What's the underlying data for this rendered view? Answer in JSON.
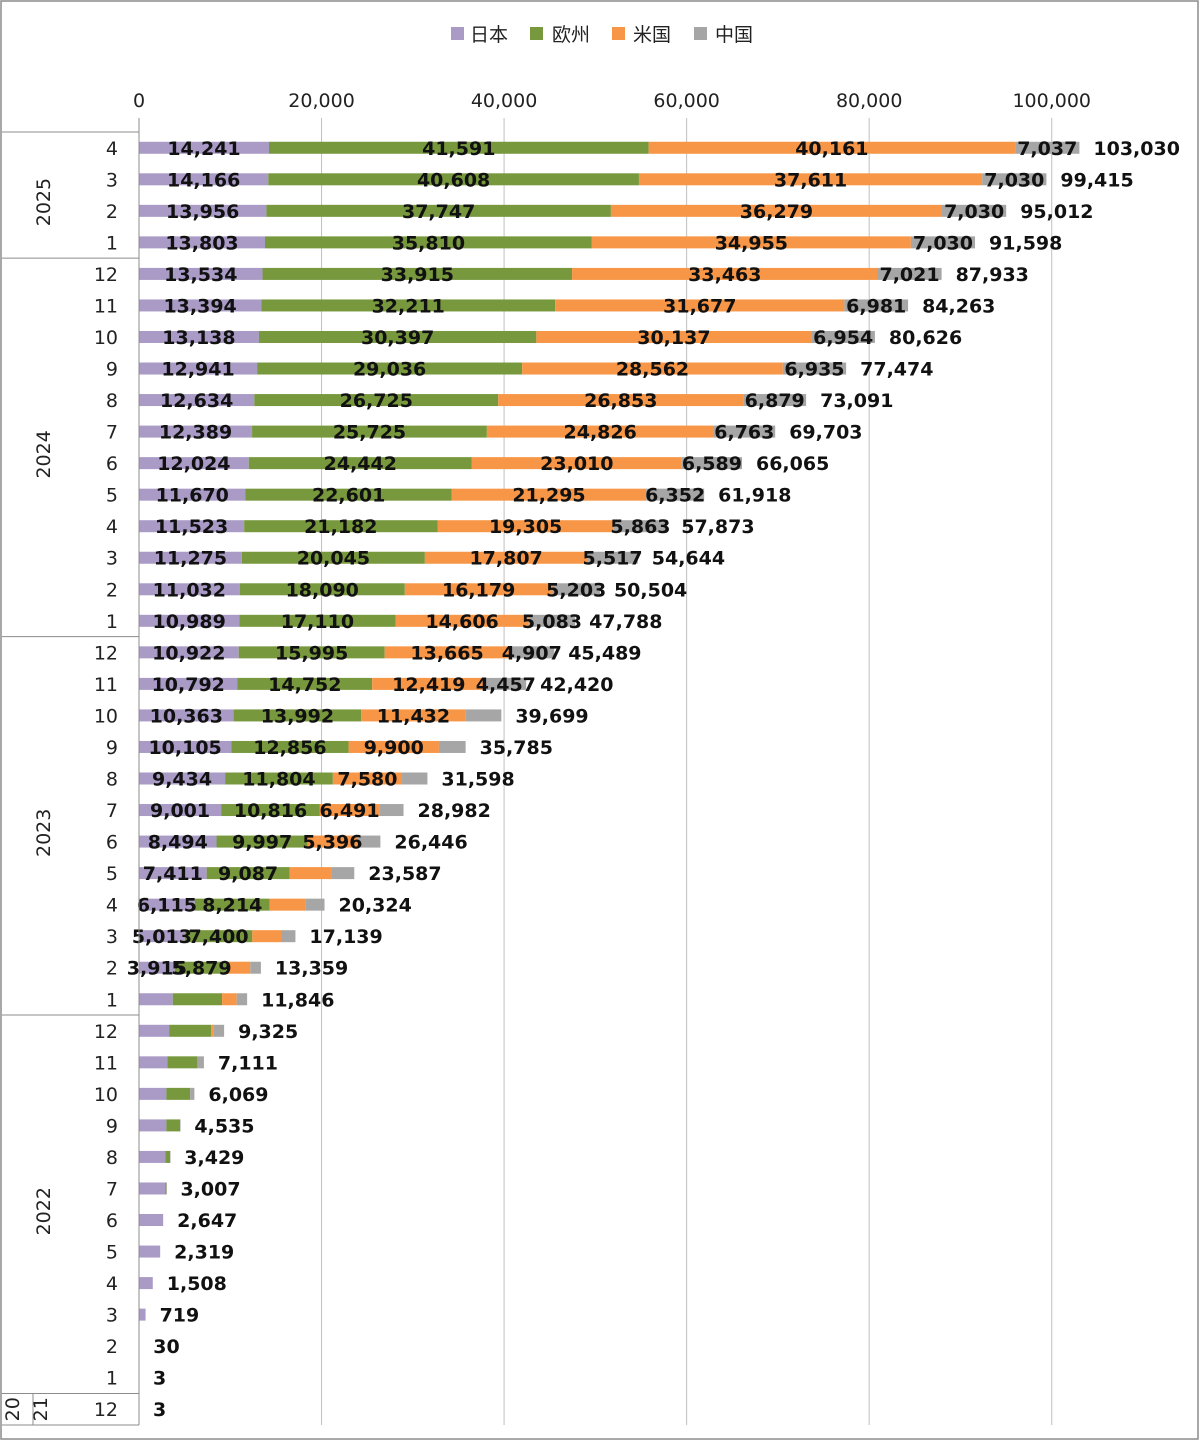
{
  "colors": {
    "japan": "#a99bc6",
    "europe": "#77983d",
    "usa": "#f79646",
    "china": "#a6a6a6",
    "grid": "#bfbfbf",
    "frame": "#8c8c8c"
  },
  "legend": [
    "日本",
    "欧州",
    "米国",
    "中国"
  ],
  "chart_data": {
    "type": "bar",
    "orientation": "horizontal",
    "stacked": true,
    "title": "",
    "xlabel": "",
    "ylabel": "",
    "xlim": [
      0,
      110000
    ],
    "x_ticks": [
      0,
      20000,
      40000,
      60000,
      80000,
      100000
    ],
    "x_tick_labels": [
      "0",
      "20,000",
      "40,000",
      "60,000",
      "80,000",
      "100,000"
    ],
    "x_axis_position": "top",
    "grid": true,
    "legend_position": "top",
    "year_groups": [
      {
        "label": "2025",
        "count": 4
      },
      {
        "label": "2024",
        "count": 12
      },
      {
        "label": "2023",
        "count": 12
      },
      {
        "label": "2022",
        "count": 12
      },
      {
        "label": "2021",
        "display": [
          "20",
          "21"
        ],
        "count": 1
      }
    ],
    "categories": [
      {
        "year": "2025",
        "month": "4"
      },
      {
        "year": "2025",
        "month": "3"
      },
      {
        "year": "2025",
        "month": "2"
      },
      {
        "year": "2025",
        "month": "1"
      },
      {
        "year": "2024",
        "month": "12"
      },
      {
        "year": "2024",
        "month": "11"
      },
      {
        "year": "2024",
        "month": "10"
      },
      {
        "year": "2024",
        "month": "9"
      },
      {
        "year": "2024",
        "month": "8"
      },
      {
        "year": "2024",
        "month": "7"
      },
      {
        "year": "2024",
        "month": "6"
      },
      {
        "year": "2024",
        "month": "5"
      },
      {
        "year": "2024",
        "month": "4"
      },
      {
        "year": "2024",
        "month": "3"
      },
      {
        "year": "2024",
        "month": "2"
      },
      {
        "year": "2024",
        "month": "1"
      },
      {
        "year": "2023",
        "month": "12"
      },
      {
        "year": "2023",
        "month": "11"
      },
      {
        "year": "2023",
        "month": "10"
      },
      {
        "year": "2023",
        "month": "9"
      },
      {
        "year": "2023",
        "month": "8"
      },
      {
        "year": "2023",
        "month": "7"
      },
      {
        "year": "2023",
        "month": "6"
      },
      {
        "year": "2023",
        "month": "5"
      },
      {
        "year": "2023",
        "month": "4"
      },
      {
        "year": "2023",
        "month": "3"
      },
      {
        "year": "2023",
        "month": "2"
      },
      {
        "year": "2023",
        "month": "1"
      },
      {
        "year": "2022",
        "month": "12"
      },
      {
        "year": "2022",
        "month": "11"
      },
      {
        "year": "2022",
        "month": "10"
      },
      {
        "year": "2022",
        "month": "9"
      },
      {
        "year": "2022",
        "month": "8"
      },
      {
        "year": "2022",
        "month": "7"
      },
      {
        "year": "2022",
        "month": "6"
      },
      {
        "year": "2022",
        "month": "5"
      },
      {
        "year": "2022",
        "month": "4"
      },
      {
        "year": "2022",
        "month": "3"
      },
      {
        "year": "2022",
        "month": "2"
      },
      {
        "year": "2022",
        "month": "1"
      },
      {
        "year": "2021",
        "month": "12"
      }
    ],
    "series": [
      {
        "name": "日本",
        "color_key": "japan",
        "values": [
          14241,
          14166,
          13956,
          13803,
          13534,
          13394,
          13138,
          12941,
          12634,
          12389,
          12024,
          11670,
          11523,
          11275,
          11032,
          10989,
          10922,
          10792,
          10363,
          10105,
          9434,
          9001,
          8494,
          7411,
          6115,
          5013,
          3915,
          3700,
          3300,
          3100,
          3000,
          3000,
          2900,
          2900,
          2647,
          2319,
          1508,
          719,
          30,
          3,
          3
        ]
      },
      {
        "name": "欧州",
        "color_key": "europe",
        "values": [
          41591,
          40608,
          37747,
          35810,
          33915,
          32211,
          30397,
          29036,
          26725,
          25725,
          24442,
          22601,
          21182,
          20045,
          18090,
          17110,
          15995,
          14752,
          13992,
          12856,
          11804,
          10816,
          9997,
          9087,
          8214,
          7400,
          5879,
          5400,
          4600,
          3300,
          2600,
          1500,
          500,
          100,
          0,
          0,
          0,
          0,
          0,
          0,
          0
        ]
      },
      {
        "name": "米国",
        "color_key": "usa",
        "values": [
          40161,
          37611,
          36279,
          34955,
          33463,
          31677,
          30137,
          28562,
          26853,
          24826,
          23010,
          21295,
          19305,
          17807,
          16179,
          14606,
          13665,
          12419,
          11432,
          9900,
          7580,
          6491,
          5396,
          4600,
          3900,
          3200,
          2400,
          1600,
          300,
          0,
          0,
          0,
          0,
          0,
          0,
          0,
          0,
          0,
          0,
          0,
          0
        ]
      },
      {
        "name": "中国",
        "color_key": "china",
        "values": [
          7037,
          7030,
          7030,
          7030,
          7021,
          6981,
          6954,
          6935,
          6879,
          6763,
          6589,
          6352,
          5863,
          5517,
          5203,
          5083,
          4907,
          4457,
          3912,
          2924,
          2780,
          2674,
          2559,
          2489,
          2095,
          1526,
          1165,
          1146,
          1125,
          711,
          469,
          35,
          29,
          7,
          0,
          0,
          0,
          0,
          0,
          0,
          0
        ]
      }
    ],
    "segment_labels": [
      [
        "14,241",
        "41,591",
        "40,161",
        "7,037"
      ],
      [
        "14,166",
        "40,608",
        "37,611",
        "7,030"
      ],
      [
        "13,956",
        "37,747",
        "36,279",
        "7,030"
      ],
      [
        "13,803",
        "35,810",
        "34,955",
        "7,030"
      ],
      [
        "13,534",
        "33,915",
        "33,463",
        "7,021"
      ],
      [
        "13,394",
        "32,211",
        "31,677",
        "6,981"
      ],
      [
        "13,138",
        "30,397",
        "30,137",
        "6,954"
      ],
      [
        "12,941",
        "29,036",
        "28,562",
        "6,935"
      ],
      [
        "12,634",
        "26,725",
        "26,853",
        "6,879"
      ],
      [
        "12,389",
        "25,725",
        "24,826",
        "6,763"
      ],
      [
        "12,024",
        "24,442",
        "23,010",
        "6,589"
      ],
      [
        "11,670",
        "22,601",
        "21,295",
        "6,352"
      ],
      [
        "11,523",
        "21,182",
        "19,305",
        "5,863"
      ],
      [
        "11,275",
        "20,045",
        "17,807",
        "5,517"
      ],
      [
        "11,032",
        "18,090",
        "16,179",
        "5,203"
      ],
      [
        "10,989",
        "17,110",
        "14,606",
        "5,083"
      ],
      [
        "10,922",
        "15,995",
        "13,665",
        "4,907"
      ],
      [
        "10,792",
        "14,752",
        "12,419",
        "4,457"
      ],
      [
        "10,363",
        "13,992",
        "11,432",
        ""
      ],
      [
        "10,105",
        "12,856",
        "9,900",
        ""
      ],
      [
        "9,434",
        "11,804",
        "7,580",
        ""
      ],
      [
        "9,001",
        "10,816",
        "6,491",
        ""
      ],
      [
        "8,494",
        "9,997",
        "5,396",
        ""
      ],
      [
        "7,411",
        "9,087",
        "",
        ""
      ],
      [
        "6,115",
        "8,214",
        "",
        ""
      ],
      [
        "5,013",
        "7,400",
        "",
        ""
      ],
      [
        "3,915",
        "5,879",
        "",
        ""
      ],
      [
        "",
        "",
        "",
        ""
      ],
      [
        "",
        "",
        "",
        ""
      ],
      [
        "",
        "",
        "",
        ""
      ],
      [
        "",
        "",
        "",
        ""
      ],
      [
        "",
        "",
        "",
        ""
      ],
      [
        "",
        "",
        "",
        ""
      ],
      [
        "",
        "",
        "",
        ""
      ],
      [
        "",
        "",
        "",
        ""
      ],
      [
        "",
        "",
        "",
        ""
      ],
      [
        "",
        "",
        "",
        ""
      ],
      [
        "",
        "",
        "",
        ""
      ],
      [
        "",
        "",
        "",
        ""
      ],
      [
        "",
        "",
        "",
        ""
      ],
      [
        "",
        "",
        "",
        ""
      ]
    ],
    "totals": [
      103030,
      99415,
      95012,
      91598,
      87933,
      84263,
      80626,
      77474,
      73091,
      69703,
      66065,
      61918,
      57873,
      54644,
      50504,
      47788,
      45489,
      42420,
      39699,
      35785,
      31598,
      28982,
      26446,
      23587,
      20324,
      17139,
      13359,
      11846,
      9325,
      7111,
      6069,
      4535,
      3429,
      3007,
      2647,
      2319,
      1508,
      719,
      30,
      3,
      3
    ],
    "total_labels": [
      "103,030",
      "99,415",
      "95,012",
      "91,598",
      "87,933",
      "84,263",
      "80,626",
      "77,474",
      "73,091",
      "69,703",
      "66,065",
      "61,918",
      "57,873",
      "54,644",
      "50,504",
      "47,788",
      "45,489",
      "42,420",
      "39,699",
      "35,785",
      "31,598",
      "28,982",
      "26,446",
      "23,587",
      "20,324",
      "17,139",
      "13,359",
      "11,846",
      "9,325",
      "7,111",
      "6,069",
      "4,535",
      "3,429",
      "3,007",
      "2,647",
      "2,319",
      "1,508",
      "719",
      "30",
      "3",
      "3"
    ]
  }
}
